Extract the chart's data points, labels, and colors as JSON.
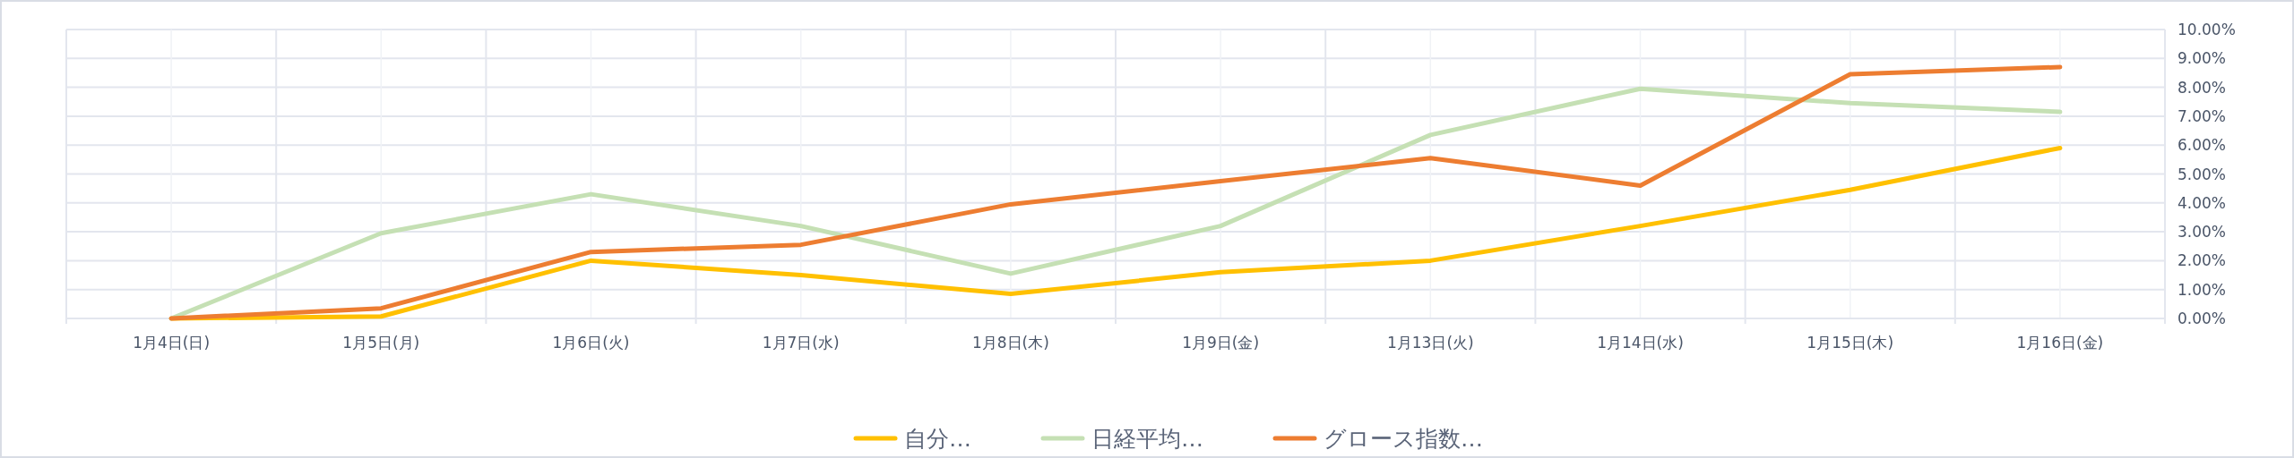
{
  "chart_data": {
    "type": "line",
    "categories": [
      "1月4日(日)",
      "1月5日(月)",
      "1月6日(火)",
      "1月7日(水)",
      "1月8日(木)",
      "1月9日(金)",
      "1月13日(火)",
      "1月14日(水)",
      "1月15日(木)",
      "1月16日(金)"
    ],
    "series": [
      {
        "name": "自分…",
        "color": "#ffc000",
        "values": [
          0,
          0.07,
          2.0,
          1.5,
          0.85,
          1.6,
          2.0,
          3.2,
          4.45,
          5.9
        ]
      },
      {
        "name": "日経平均…",
        "color": "#c5e0b4",
        "values": [
          0,
          2.95,
          4.3,
          3.2,
          1.55,
          3.2,
          6.35,
          7.95,
          7.45,
          7.15
        ]
      },
      {
        "name": "グロース指数…",
        "color": "#ed7d31",
        "values": [
          0,
          0.35,
          2.3,
          2.55,
          3.95,
          4.75,
          5.55,
          4.6,
          8.45,
          8.7
        ]
      }
    ],
    "ylim": [
      0,
      10
    ],
    "yticks": [
      {
        "value": 0,
        "label": "0.00%"
      },
      {
        "value": 1,
        "label": "1.00%"
      },
      {
        "value": 2,
        "label": "2.00%"
      },
      {
        "value": 3,
        "label": "3.00%"
      },
      {
        "value": 4,
        "label": "4.00%"
      },
      {
        "value": 5,
        "label": "5.00%"
      },
      {
        "value": 6,
        "label": "6.00%"
      },
      {
        "value": 7,
        "label": "7.00%"
      },
      {
        "value": 8,
        "label": "8.00%"
      },
      {
        "value": 9,
        "label": "9.00%"
      },
      {
        "value": 10,
        "label": "10.00%"
      }
    ],
    "grid": true,
    "legend": "bottom",
    "marker": "none",
    "line_style": "solid"
  }
}
